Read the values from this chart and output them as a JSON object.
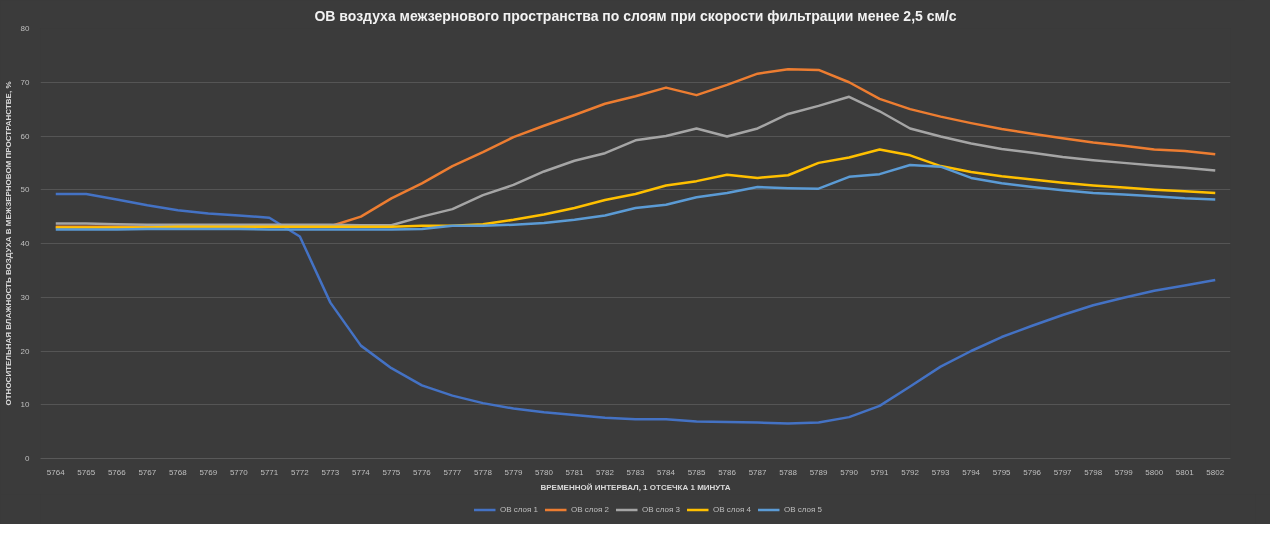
{
  "chart_data": {
    "type": "line",
    "title": "ОВ воздуха межзернового пространства по слоям при скорости фильтрации менее 2,5 см/с",
    "xlabel": "ВРЕМЕННОЙ ИНТЕРВАЛ, 1 ОТСЕЧКА 1 МИНУТА",
    "ylabel": "ОТНОСИТЕЛЬНАЯ ВЛАЖНОСТЬ ВОЗДУХА В МЕЖЗЕРНОВОМ ПРОСТРАНСТВЕ, %",
    "categories": [
      "5764",
      "5765",
      "5766",
      "5767",
      "5768",
      "5769",
      "5770",
      "5771",
      "5772",
      "5773",
      "5774",
      "5775",
      "5776",
      "5777",
      "5778",
      "5779",
      "5780",
      "5781",
      "5782",
      "5783",
      "5784",
      "5785",
      "5786",
      "5787",
      "5788",
      "5789",
      "5790",
      "5791",
      "5792",
      "5793",
      "5794",
      "5795",
      "5796",
      "5797",
      "5798",
      "5799",
      "5800",
      "5801",
      "5802"
    ],
    "series": [
      {
        "name": "ОВ слоя 1",
        "color": "#4472c4",
        "values": [
          49.2,
          49.2,
          48.2,
          47.1,
          46.2,
          45.6,
          45.2,
          44.8,
          41.3,
          29,
          21,
          16.8,
          13.6,
          11.7,
          10.3,
          9.3,
          8.6,
          8.1,
          7.6,
          7.3,
          7.3,
          6.9,
          6.8,
          6.7,
          6.5,
          6.7,
          7.7,
          9.8,
          13.4,
          17.1,
          20,
          22.6,
          24.7,
          26.7,
          28.5,
          29.9,
          31.2,
          32.2,
          33.2
        ]
      },
      {
        "name": "ОВ слоя 2",
        "color": "#ed7d31",
        "values": [
          43.1,
          43.1,
          43.1,
          43.1,
          43.1,
          43.1,
          43.1,
          43.1,
          43.1,
          43.2,
          45,
          48.4,
          51.2,
          54.4,
          57,
          59.8,
          61.9,
          63.9,
          66,
          67.4,
          69,
          67.6,
          69.5,
          71.6,
          72.4,
          72.3,
          70,
          66.9,
          65,
          63.6,
          62.4,
          61.3,
          60.4,
          59.6,
          58.8,
          58.2,
          57.5,
          57.2,
          56.6
        ]
      },
      {
        "name": "ОВ слоя 3",
        "color": "#a5a5a5",
        "values": [
          43.7,
          43.7,
          43.6,
          43.5,
          43.5,
          43.5,
          43.5,
          43.5,
          43.5,
          43.5,
          43.4,
          43.4,
          45,
          46.4,
          49,
          50.9,
          53.4,
          55.4,
          56.8,
          59.2,
          60,
          61.4,
          59.9,
          61.4,
          64.1,
          65.6,
          67.3,
          64.6,
          61.4,
          59.9,
          58.6,
          57.6,
          56.9,
          56.1,
          55.5,
          55,
          54.5,
          54.1,
          53.6
        ]
      },
      {
        "name": "ОВ слоя 4",
        "color": "#ffc000",
        "values": [
          43,
          43,
          43,
          43,
          43.1,
          43.1,
          43.1,
          43.1,
          43.1,
          43.1,
          43.1,
          43.1,
          43.3,
          43.3,
          43.6,
          44.4,
          45.4,
          46.6,
          48.1,
          49.2,
          50.8,
          51.6,
          52.8,
          52.2,
          52.7,
          55,
          56,
          57.5,
          56.4,
          54.4,
          53.3,
          52.5,
          51.9,
          51.3,
          50.8,
          50.4,
          50,
          49.7,
          49.4
        ]
      },
      {
        "name": "ОВ слоя 5",
        "color": "#5b9bd5",
        "values": [
          42.6,
          42.6,
          42.6,
          42.7,
          42.7,
          42.7,
          42.7,
          42.6,
          42.6,
          42.6,
          42.6,
          42.6,
          42.7,
          43.3,
          43.3,
          43.5,
          43.8,
          44.4,
          45.2,
          46.6,
          47.2,
          48.6,
          49.4,
          50.5,
          50.3,
          50.2,
          52.4,
          52.9,
          54.6,
          54.3,
          52.2,
          51.2,
          50.5,
          49.9,
          49.4,
          49.1,
          48.8,
          48.4,
          48.2
        ]
      }
    ],
    "ylim": [
      0,
      80
    ],
    "yticks": [
      0,
      10,
      20,
      30,
      40,
      50,
      60,
      70,
      80
    ],
    "grid": "y",
    "legend": "bottom",
    "marker": "none",
    "line_style": "solid"
  }
}
